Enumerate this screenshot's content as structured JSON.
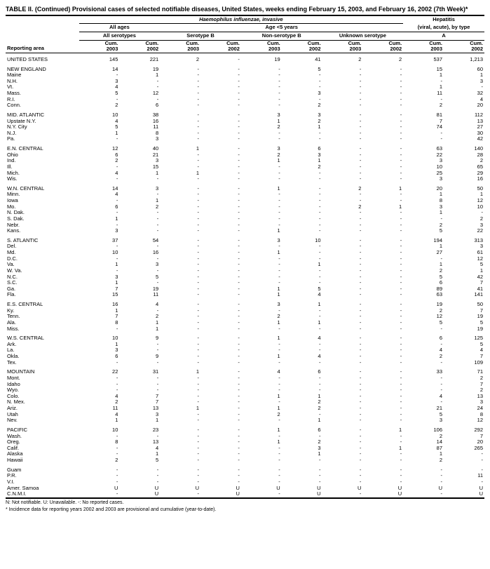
{
  "title": "TABLE II. (Continued) Provisional cases of selected notifiable diseases, United States, weeks ending February 15, 2003, and February 16, 2002 (7th Week)*",
  "headers": {
    "hi": "Haemophilus influenzae, invasive",
    "hep": "Hepatitis",
    "hep_sub": "(viral, acute), by type",
    "all_ages": "All ages",
    "age5": "Age <5 years",
    "all_sero": "All serotypes",
    "seroB": "Serotype B",
    "nonB": "Non-serotype B",
    "unk": "Unknown serotype",
    "A": "A",
    "cum03": "Cum. 2003",
    "cum02": "Cum. 2002",
    "reporting": "Reporting area"
  },
  "footnotes": {
    "f1": "N: Not notifiable.        U: Unavailable.        -: No reported cases.",
    "f2": "* Incidence data for reporting years 2002 and 2003 are provisional and cumulative (year-to-date)."
  },
  "groups": [
    [
      [
        "UNITED STATES",
        "145",
        "221",
        "2",
        "-",
        "19",
        "41",
        "2",
        "2",
        "537",
        "1,213"
      ]
    ],
    [
      [
        "NEW ENGLAND",
        "14",
        "19",
        "-",
        "-",
        "-",
        "5",
        "-",
        "-",
        "15",
        "60"
      ],
      [
        "Maine",
        "-",
        "1",
        "-",
        "-",
        "-",
        "-",
        "-",
        "-",
        "1",
        "1"
      ],
      [
        "N.H.",
        "3",
        "-",
        "-",
        "-",
        "-",
        "-",
        "-",
        "-",
        "-",
        "3"
      ],
      [
        "Vt.",
        "4",
        "-",
        "-",
        "-",
        "-",
        "-",
        "-",
        "-",
        "1",
        "-"
      ],
      [
        "Mass.",
        "5",
        "12",
        "-",
        "-",
        "-",
        "3",
        "-",
        "-",
        "11",
        "32"
      ],
      [
        "R.I.",
        "-",
        "-",
        "-",
        "-",
        "-",
        "-",
        "-",
        "-",
        "-",
        "4"
      ],
      [
        "Conn.",
        "2",
        "6",
        "-",
        "-",
        "-",
        "2",
        "-",
        "-",
        "2",
        "20"
      ]
    ],
    [
      [
        "MID. ATLANTIC",
        "10",
        "38",
        "-",
        "-",
        "3",
        "3",
        "-",
        "-",
        "81",
        "112"
      ],
      [
        "Upstate N.Y.",
        "4",
        "16",
        "-",
        "-",
        "1",
        "2",
        "-",
        "-",
        "7",
        "13"
      ],
      [
        "N.Y. City",
        "5",
        "11",
        "-",
        "-",
        "2",
        "1",
        "-",
        "-",
        "74",
        "27"
      ],
      [
        "N.J.",
        "1",
        "8",
        "-",
        "-",
        "-",
        "-",
        "-",
        "-",
        "-",
        "30"
      ],
      [
        "Pa.",
        "-",
        "3",
        "-",
        "-",
        "-",
        "-",
        "-",
        "-",
        "-",
        "42"
      ]
    ],
    [
      [
        "E.N. CENTRAL",
        "12",
        "40",
        "1",
        "-",
        "3",
        "6",
        "-",
        "-",
        "63",
        "140"
      ],
      [
        "Ohio",
        "6",
        "21",
        "-",
        "-",
        "2",
        "3",
        "-",
        "-",
        "22",
        "28"
      ],
      [
        "Ind.",
        "2",
        "3",
        "-",
        "-",
        "1",
        "1",
        "-",
        "-",
        "3",
        "2"
      ],
      [
        "Ill.",
        "-",
        "15",
        "-",
        "-",
        "-",
        "2",
        "-",
        "-",
        "10",
        "65"
      ],
      [
        "Mich.",
        "4",
        "1",
        "1",
        "-",
        "-",
        "-",
        "-",
        "-",
        "25",
        "29"
      ],
      [
        "Wis.",
        "-",
        "-",
        "-",
        "-",
        "-",
        "-",
        "-",
        "-",
        "3",
        "16"
      ]
    ],
    [
      [
        "W.N. CENTRAL",
        "14",
        "3",
        "-",
        "-",
        "1",
        "-",
        "2",
        "1",
        "20",
        "50"
      ],
      [
        "Minn.",
        "4",
        "-",
        "-",
        "-",
        "-",
        "-",
        "-",
        "-",
        "1",
        "1"
      ],
      [
        "Iowa",
        "-",
        "1",
        "-",
        "-",
        "-",
        "-",
        "-",
        "-",
        "8",
        "12"
      ],
      [
        "Mo.",
        "6",
        "2",
        "-",
        "-",
        "-",
        "-",
        "2",
        "1",
        "3",
        "10"
      ],
      [
        "N. Dak.",
        "-",
        "-",
        "-",
        "-",
        "-",
        "-",
        "-",
        "-",
        "1",
        "-"
      ],
      [
        "S. Dak.",
        "1",
        "-",
        "-",
        "-",
        "-",
        "-",
        "-",
        "-",
        "-",
        "2"
      ],
      [
        "Nebr.",
        "-",
        "-",
        "-",
        "-",
        "-",
        "-",
        "-",
        "-",
        "2",
        "3"
      ],
      [
        "Kans.",
        "3",
        "-",
        "-",
        "-",
        "1",
        "-",
        "-",
        "-",
        "5",
        "22"
      ]
    ],
    [
      [
        "S. ATLANTIC",
        "37",
        "54",
        "-",
        "-",
        "3",
        "10",
        "-",
        "-",
        "194",
        "313"
      ],
      [
        "Del.",
        "-",
        "-",
        "-",
        "-",
        "-",
        "-",
        "-",
        "-",
        "1",
        "3"
      ],
      [
        "Md.",
        "10",
        "16",
        "-",
        "-",
        "1",
        "-",
        "-",
        "-",
        "27",
        "61"
      ],
      [
        "D.C.",
        "-",
        "-",
        "-",
        "-",
        "-",
        "-",
        "-",
        "-",
        "-",
        "12"
      ],
      [
        "Va.",
        "1",
        "3",
        "-",
        "-",
        "-",
        "1",
        "-",
        "-",
        "1",
        "5"
      ],
      [
        "W. Va.",
        "-",
        "-",
        "-",
        "-",
        "-",
        "-",
        "-",
        "-",
        "2",
        "1"
      ],
      [
        "N.C.",
        "3",
        "5",
        "-",
        "-",
        "-",
        "-",
        "-",
        "-",
        "5",
        "42"
      ],
      [
        "S.C.",
        "1",
        "-",
        "-",
        "-",
        "-",
        "-",
        "-",
        "-",
        "6",
        "7"
      ],
      [
        "Ga.",
        "7",
        "19",
        "-",
        "-",
        "1",
        "5",
        "-",
        "-",
        "89",
        "41"
      ],
      [
        "Fla.",
        "15",
        "11",
        "-",
        "-",
        "1",
        "4",
        "-",
        "-",
        "63",
        "141"
      ]
    ],
    [
      [
        "E.S. CENTRAL",
        "16",
        "4",
        "-",
        "-",
        "3",
        "1",
        "-",
        "-",
        "19",
        "50"
      ],
      [
        "Ky.",
        "1",
        "-",
        "-",
        "-",
        "-",
        "-",
        "-",
        "-",
        "2",
        "7"
      ],
      [
        "Tenn.",
        "7",
        "2",
        "-",
        "-",
        "2",
        "-",
        "-",
        "-",
        "12",
        "19"
      ],
      [
        "Ala.",
        "8",
        "1",
        "-",
        "-",
        "1",
        "1",
        "-",
        "-",
        "5",
        "5"
      ],
      [
        "Miss.",
        "-",
        "1",
        "-",
        "-",
        "-",
        "-",
        "-",
        "-",
        "-",
        "19"
      ]
    ],
    [
      [
        "W.S. CENTRAL",
        "10",
        "9",
        "-",
        "-",
        "1",
        "4",
        "-",
        "-",
        "6",
        "125"
      ],
      [
        "Ark.",
        "1",
        "-",
        "-",
        "-",
        "-",
        "-",
        "-",
        "-",
        "-",
        "5"
      ],
      [
        "La.",
        "3",
        "-",
        "-",
        "-",
        "-",
        "-",
        "-",
        "-",
        "4",
        "4"
      ],
      [
        "Okla.",
        "6",
        "9",
        "-",
        "-",
        "1",
        "4",
        "-",
        "-",
        "2",
        "7"
      ],
      [
        "Tex.",
        "-",
        "-",
        "-",
        "-",
        "-",
        "-",
        "-",
        "-",
        "-",
        "109"
      ]
    ],
    [
      [
        "MOUNTAIN",
        "22",
        "31",
        "1",
        "-",
        "4",
        "6",
        "-",
        "-",
        "33",
        "71"
      ],
      [
        "Mont.",
        "-",
        "-",
        "-",
        "-",
        "-",
        "-",
        "-",
        "-",
        "-",
        "2"
      ],
      [
        "Idaho",
        "-",
        "-",
        "-",
        "-",
        "-",
        "-",
        "-",
        "-",
        "-",
        "7"
      ],
      [
        "Wyo.",
        "-",
        "-",
        "-",
        "-",
        "-",
        "-",
        "-",
        "-",
        "-",
        "2"
      ],
      [
        "Colo.",
        "4",
        "7",
        "-",
        "-",
        "1",
        "1",
        "-",
        "-",
        "4",
        "13"
      ],
      [
        "N. Mex.",
        "2",
        "7",
        "-",
        "-",
        "-",
        "2",
        "-",
        "-",
        "-",
        "3"
      ],
      [
        "Ariz.",
        "11",
        "13",
        "1",
        "-",
        "1",
        "2",
        "-",
        "-",
        "21",
        "24"
      ],
      [
        "Utah",
        "4",
        "3",
        "-",
        "-",
        "2",
        "-",
        "-",
        "-",
        "5",
        "8"
      ],
      [
        "Nev.",
        "1",
        "1",
        "-",
        "-",
        "-",
        "1",
        "-",
        "-",
        "3",
        "12"
      ]
    ],
    [
      [
        "PACIFIC",
        "10",
        "23",
        "-",
        "-",
        "1",
        "6",
        "-",
        "1",
        "106",
        "292"
      ],
      [
        "Wash.",
        "-",
        "-",
        "-",
        "-",
        "-",
        "-",
        "-",
        "-",
        "2",
        "7"
      ],
      [
        "Oreg.",
        "8",
        "13",
        "-",
        "-",
        "1",
        "2",
        "-",
        "-",
        "14",
        "20"
      ],
      [
        "Calif.",
        "-",
        "4",
        "-",
        "-",
        "-",
        "3",
        "-",
        "1",
        "87",
        "265"
      ],
      [
        "Alaska",
        "-",
        "1",
        "-",
        "-",
        "-",
        "1",
        "-",
        "-",
        "1",
        "-"
      ],
      [
        "Hawaii",
        "2",
        "5",
        "-",
        "-",
        "-",
        "-",
        "-",
        "-",
        "2",
        "-"
      ]
    ],
    [
      [
        "Guam",
        "-",
        "-",
        "-",
        "-",
        "-",
        "-",
        "-",
        "-",
        "-",
        "-"
      ],
      [
        "P.R.",
        "-",
        "-",
        "-",
        "-",
        "-",
        "-",
        "-",
        "-",
        "-",
        "11"
      ],
      [
        "V.I.",
        "-",
        "-",
        "-",
        "-",
        "-",
        "-",
        "-",
        "-",
        "-",
        "-"
      ],
      [
        "Amer. Samoa",
        "U",
        "U",
        "U",
        "U",
        "U",
        "U",
        "U",
        "U",
        "U",
        "U"
      ],
      [
        "C.N.M.I.",
        "-",
        "U",
        "-",
        "U",
        "-",
        "U",
        "-",
        "U",
        "-",
        "U"
      ]
    ]
  ]
}
